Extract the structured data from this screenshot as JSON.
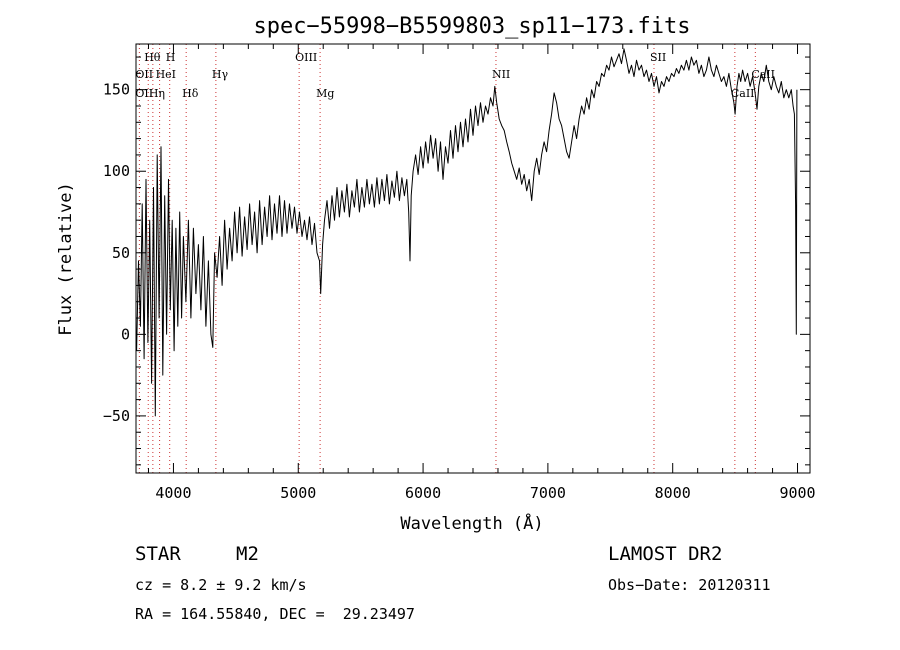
{
  "chart_data": {
    "type": "line",
    "title": "spec−55998−B5599803_sp11−173.fits",
    "xlabel": "Wavelength (Å)",
    "ylabel": "Flux (relative)",
    "xlim": [
      3700,
      9100
    ],
    "ylim": [
      -85,
      178
    ],
    "x_ticks": [
      4000,
      5000,
      6000,
      7000,
      8000,
      9000
    ],
    "x_tick_labels": [
      "4000",
      "5000",
      "6000",
      "7000",
      "8000",
      "9000"
    ],
    "y_ticks": [
      -50,
      0,
      50,
      100,
      150
    ],
    "y_tick_labels": [
      "−50",
      "0",
      "50",
      "100",
      "150"
    ],
    "grid": false,
    "line_color": "#000000",
    "marker_color": "#cc3333",
    "spectral_lines": [
      {
        "label": "Hθ",
        "x": 3798,
        "row": 0
      },
      {
        "label": "H",
        "x": 3970,
        "row": 0
      },
      {
        "label": "OIII",
        "x": 5007,
        "row": 0
      },
      {
        "label": "SII",
        "x": 7850,
        "row": 0
      },
      {
        "label": "OII",
        "x": 3727,
        "row": 1
      },
      {
        "label": "HeI",
        "x": 3889,
        "row": 1
      },
      {
        "label": "Hγ",
        "x": 4340,
        "row": 1
      },
      {
        "label": "NII",
        "x": 6584,
        "row": 1
      },
      {
        "label": "CaII",
        "x": 8662,
        "row": 1
      },
      {
        "label": "OII",
        "x": 3727,
        "row": 2
      },
      {
        "label": "Hη",
        "x": 3835,
        "row": 2
      },
      {
        "label": "Hδ",
        "x": 4102,
        "row": 2
      },
      {
        "label": "Mg",
        "x": 5175,
        "row": 2
      },
      {
        "label": "CaII",
        "x": 8498,
        "row": 2
      }
    ],
    "series": [
      {
        "points": [
          [
            3705,
            -10
          ],
          [
            3720,
            45
          ],
          [
            3735,
            5
          ],
          [
            3750,
            80
          ],
          [
            3765,
            -15
          ],
          [
            3780,
            95
          ],
          [
            3795,
            -5
          ],
          [
            3810,
            70
          ],
          [
            3825,
            -30
          ],
          [
            3840,
            90
          ],
          [
            3855,
            -50
          ],
          [
            3870,
            110
          ],
          [
            3885,
            10
          ],
          [
            3900,
            115
          ],
          [
            3915,
            -25
          ],
          [
            3930,
            85
          ],
          [
            3945,
            0
          ],
          [
            3960,
            95
          ],
          [
            3975,
            15
          ],
          [
            3990,
            70
          ],
          [
            4005,
            -10
          ],
          [
            4020,
            65
          ],
          [
            4035,
            5
          ],
          [
            4050,
            75
          ],
          [
            4065,
            10
          ],
          [
            4080,
            60
          ],
          [
            4100,
            20
          ],
          [
            4120,
            70
          ],
          [
            4140,
            10
          ],
          [
            4160,
            65
          ],
          [
            4180,
            25
          ],
          [
            4200,
            55
          ],
          [
            4220,
            15
          ],
          [
            4240,
            60
          ],
          [
            4260,
            5
          ],
          [
            4280,
            45
          ],
          [
            4300,
            0
          ],
          [
            4315,
            -8
          ],
          [
            4330,
            50
          ],
          [
            4350,
            35
          ],
          [
            4370,
            60
          ],
          [
            4390,
            30
          ],
          [
            4410,
            70
          ],
          [
            4430,
            40
          ],
          [
            4450,
            65
          ],
          [
            4470,
            45
          ],
          [
            4490,
            75
          ],
          [
            4510,
            50
          ],
          [
            4530,
            78
          ],
          [
            4550,
            48
          ],
          [
            4570,
            72
          ],
          [
            4590,
            52
          ],
          [
            4610,
            80
          ],
          [
            4630,
            55
          ],
          [
            4650,
            75
          ],
          [
            4670,
            50
          ],
          [
            4690,
            82
          ],
          [
            4710,
            55
          ],
          [
            4730,
            78
          ],
          [
            4750,
            60
          ],
          [
            4770,
            85
          ],
          [
            4790,
            58
          ],
          [
            4810,
            80
          ],
          [
            4830,
            62
          ],
          [
            4850,
            85
          ],
          [
            4870,
            60
          ],
          [
            4890,
            82
          ],
          [
            4910,
            62
          ],
          [
            4930,
            80
          ],
          [
            4950,
            65
          ],
          [
            4970,
            78
          ],
          [
            4990,
            62
          ],
          [
            5010,
            75
          ],
          [
            5030,
            60
          ],
          [
            5050,
            70
          ],
          [
            5070,
            58
          ],
          [
            5090,
            72
          ],
          [
            5110,
            55
          ],
          [
            5130,
            68
          ],
          [
            5150,
            50
          ],
          [
            5170,
            45
          ],
          [
            5180,
            25
          ],
          [
            5195,
            55
          ],
          [
            5210,
            70
          ],
          [
            5230,
            82
          ],
          [
            5250,
            65
          ],
          [
            5270,
            85
          ],
          [
            5290,
            70
          ],
          [
            5310,
            90
          ],
          [
            5330,
            72
          ],
          [
            5350,
            88
          ],
          [
            5370,
            75
          ],
          [
            5390,
            92
          ],
          [
            5410,
            72
          ],
          [
            5430,
            88
          ],
          [
            5450,
            78
          ],
          [
            5470,
            95
          ],
          [
            5490,
            75
          ],
          [
            5510,
            90
          ],
          [
            5530,
            78
          ],
          [
            5550,
            95
          ],
          [
            5570,
            80
          ],
          [
            5590,
            92
          ],
          [
            5610,
            78
          ],
          [
            5630,
            96
          ],
          [
            5650,
            80
          ],
          [
            5670,
            95
          ],
          [
            5690,
            82
          ],
          [
            5710,
            98
          ],
          [
            5730,
            80
          ],
          [
            5750,
            94
          ],
          [
            5770,
            84
          ],
          [
            5790,
            100
          ],
          [
            5810,
            82
          ],
          [
            5830,
            96
          ],
          [
            5850,
            85
          ],
          [
            5870,
            95
          ],
          [
            5885,
            75
          ],
          [
            5895,
            45
          ],
          [
            5905,
            85
          ],
          [
            5920,
            100
          ],
          [
            5940,
            110
          ],
          [
            5960,
            98
          ],
          [
            5980,
            115
          ],
          [
            6000,
            102
          ],
          [
            6020,
            118
          ],
          [
            6040,
            105
          ],
          [
            6060,
            122
          ],
          [
            6080,
            108
          ],
          [
            6100,
            120
          ],
          [
            6120,
            100
          ],
          [
            6140,
            118
          ],
          [
            6160,
            95
          ],
          [
            6180,
            115
          ],
          [
            6200,
            105
          ],
          [
            6220,
            125
          ],
          [
            6240,
            108
          ],
          [
            6260,
            128
          ],
          [
            6280,
            112
          ],
          [
            6300,
            130
          ],
          [
            6320,
            115
          ],
          [
            6340,
            132
          ],
          [
            6360,
            118
          ],
          [
            6380,
            138
          ],
          [
            6400,
            122
          ],
          [
            6420,
            140
          ],
          [
            6440,
            128
          ],
          [
            6460,
            142
          ],
          [
            6480,
            130
          ],
          [
            6500,
            140
          ],
          [
            6520,
            135
          ],
          [
            6540,
            145
          ],
          [
            6560,
            140
          ],
          [
            6575,
            152
          ],
          [
            6590,
            142
          ],
          [
            6610,
            132
          ],
          [
            6630,
            128
          ],
          [
            6650,
            125
          ],
          [
            6670,
            118
          ],
          [
            6690,
            112
          ],
          [
            6710,
            105
          ],
          [
            6730,
            100
          ],
          [
            6750,
            95
          ],
          [
            6770,
            102
          ],
          [
            6790,
            92
          ],
          [
            6810,
            98
          ],
          [
            6830,
            88
          ],
          [
            6850,
            95
          ],
          [
            6870,
            82
          ],
          [
            6890,
            100
          ],
          [
            6910,
            108
          ],
          [
            6930,
            98
          ],
          [
            6950,
            110
          ],
          [
            6970,
            118
          ],
          [
            6990,
            112
          ],
          [
            7010,
            125
          ],
          [
            7030,
            135
          ],
          [
            7050,
            148
          ],
          [
            7070,
            142
          ],
          [
            7090,
            132
          ],
          [
            7110,
            128
          ],
          [
            7130,
            120
          ],
          [
            7150,
            112
          ],
          [
            7170,
            108
          ],
          [
            7190,
            118
          ],
          [
            7210,
            128
          ],
          [
            7230,
            120
          ],
          [
            7250,
            132
          ],
          [
            7270,
            140
          ],
          [
            7290,
            135
          ],
          [
            7310,
            145
          ],
          [
            7330,
            138
          ],
          [
            7350,
            150
          ],
          [
            7370,
            145
          ],
          [
            7390,
            155
          ],
          [
            7410,
            152
          ],
          [
            7430,
            160
          ],
          [
            7450,
            158
          ],
          [
            7470,
            165
          ],
          [
            7490,
            162
          ],
          [
            7510,
            170
          ],
          [
            7530,
            164
          ],
          [
            7550,
            168
          ],
          [
            7570,
            172
          ],
          [
            7590,
            166
          ],
          [
            7610,
            175
          ],
          [
            7630,
            168
          ],
          [
            7650,
            160
          ],
          [
            7670,
            165
          ],
          [
            7690,
            158
          ],
          [
            7710,
            168
          ],
          [
            7730,
            162
          ],
          [
            7750,
            165
          ],
          [
            7770,
            158
          ],
          [
            7790,
            162
          ],
          [
            7810,
            155
          ],
          [
            7830,
            160
          ],
          [
            7850,
            152
          ],
          [
            7870,
            158
          ],
          [
            7890,
            148
          ],
          [
            7910,
            155
          ],
          [
            7930,
            152
          ],
          [
            7950,
            158
          ],
          [
            7970,
            155
          ],
          [
            7990,
            160
          ],
          [
            8010,
            158
          ],
          [
            8030,
            163
          ],
          [
            8050,
            160
          ],
          [
            8070,
            165
          ],
          [
            8090,
            162
          ],
          [
            8110,
            168
          ],
          [
            8130,
            162
          ],
          [
            8150,
            170
          ],
          [
            8170,
            165
          ],
          [
            8190,
            168
          ],
          [
            8210,
            160
          ],
          [
            8230,
            165
          ],
          [
            8250,
            158
          ],
          [
            8270,
            162
          ],
          [
            8290,
            170
          ],
          [
            8310,
            162
          ],
          [
            8330,
            158
          ],
          [
            8350,
            165
          ],
          [
            8370,
            160
          ],
          [
            8390,
            155
          ],
          [
            8410,
            158
          ],
          [
            8430,
            152
          ],
          [
            8450,
            160
          ],
          [
            8470,
            150
          ],
          [
            8490,
            142
          ],
          [
            8500,
            135
          ],
          [
            8515,
            152
          ],
          [
            8530,
            160
          ],
          [
            8545,
            155
          ],
          [
            8560,
            162
          ],
          [
            8580,
            155
          ],
          [
            8600,
            160
          ],
          [
            8620,
            152
          ],
          [
            8640,
            158
          ],
          [
            8660,
            148
          ],
          [
            8675,
            138
          ],
          [
            8690,
            152
          ],
          [
            8710,
            160
          ],
          [
            8730,
            155
          ],
          [
            8750,
            165
          ],
          [
            8770,
            155
          ],
          [
            8790,
            150
          ],
          [
            8810,
            158
          ],
          [
            8830,
            152
          ],
          [
            8850,
            148
          ],
          [
            8870,
            155
          ],
          [
            8890,
            145
          ],
          [
            8910,
            150
          ],
          [
            8930,
            145
          ],
          [
            8950,
            150
          ],
          [
            8965,
            140
          ],
          [
            8975,
            135
          ],
          [
            8985,
            80
          ],
          [
            8990,
            0
          ],
          [
            8995,
            150
          ]
        ]
      }
    ]
  },
  "info": {
    "object_class": "STAR",
    "subclass": "M2",
    "survey": "LAMOST DR2",
    "redshift": "cz = 8.2 ± 9.2 km/s",
    "obs_date": "Obs−Date: 20120311",
    "coords": "RA = 164.55840, DEC =  29.23497"
  }
}
